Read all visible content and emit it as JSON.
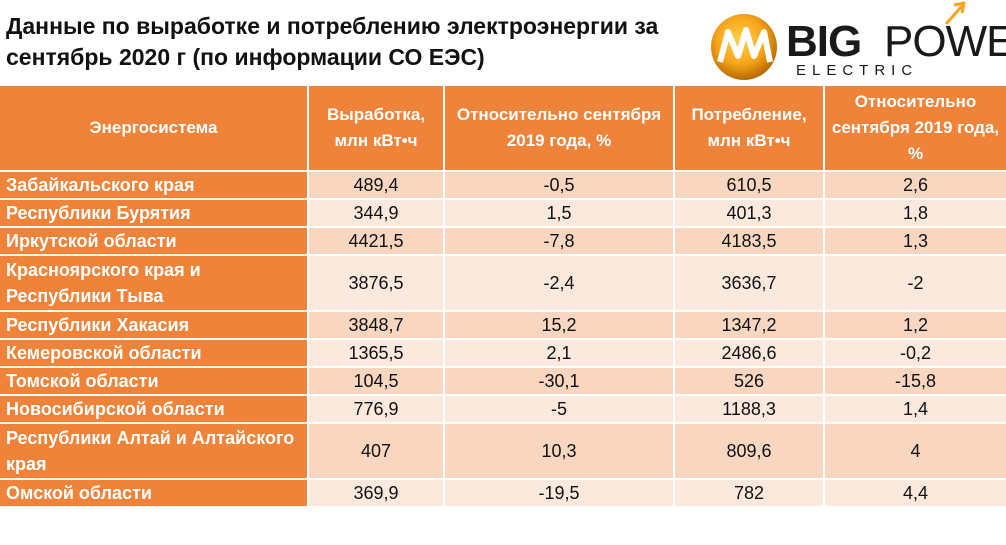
{
  "title": "Данные по выработке и потреблению электроэнергии за сентябрь 2020 г (по информации СО ЕЭС)",
  "logo": {
    "big": "BIG",
    "power": "POWER",
    "electric": "ELECTRIC",
    "colors": {
      "orange": "#f7a51b",
      "dark": "#1a1a1a"
    }
  },
  "colors": {
    "header": "#ee8339",
    "row_dark": "#f9d6c0",
    "row_light": "#fce9de"
  },
  "table": {
    "headers": [
      "Энергосистема",
      "Выработка, млн кВт•ч",
      "Относительно сентября 2019 года, %",
      "Потребление, млн кВт•ч",
      "Относительно сентября 2019 года, %"
    ],
    "rows": [
      {
        "name": "Забайкальского края",
        "gen": "489,4",
        "gen_rel": "-0,5",
        "cons": "610,5",
        "cons_rel": "2,6"
      },
      {
        "name": "Республики Бурятия",
        "gen": "344,9",
        "gen_rel": "1,5",
        "cons": "401,3",
        "cons_rel": "1,8"
      },
      {
        "name": "Иркутской области",
        "gen": "4421,5",
        "gen_rel": "-7,8",
        "cons": "4183,5",
        "cons_rel": "1,3"
      },
      {
        "name": "Красноярского края и Республики Тыва",
        "gen": "3876,5",
        "gen_rel": "-2,4",
        "cons": "3636,7",
        "cons_rel": "-2"
      },
      {
        "name": "Республики Хакасия",
        "gen": "3848,7",
        "gen_rel": "15,2",
        "cons": "1347,2",
        "cons_rel": "1,2"
      },
      {
        "name": "Кемеровской области",
        "gen": "1365,5",
        "gen_rel": "2,1",
        "cons": "2486,6",
        "cons_rel": "-0,2"
      },
      {
        "name": "Томской области",
        "gen": "104,5",
        "gen_rel": "-30,1",
        "cons": "526",
        "cons_rel": "-15,8"
      },
      {
        "name": "Новосибирской области",
        "gen": "776,9",
        "gen_rel": "-5",
        "cons": "1188,3",
        "cons_rel": "1,4"
      },
      {
        "name": "Республики Алтай и Алтайского края",
        "gen": "407",
        "gen_rel": "10,3",
        "cons": "809,6",
        "cons_rel": "4"
      },
      {
        "name": "Омской области",
        "gen": "369,9",
        "gen_rel": "-19,5",
        "cons": "782",
        "cons_rel": "4,4"
      }
    ]
  }
}
